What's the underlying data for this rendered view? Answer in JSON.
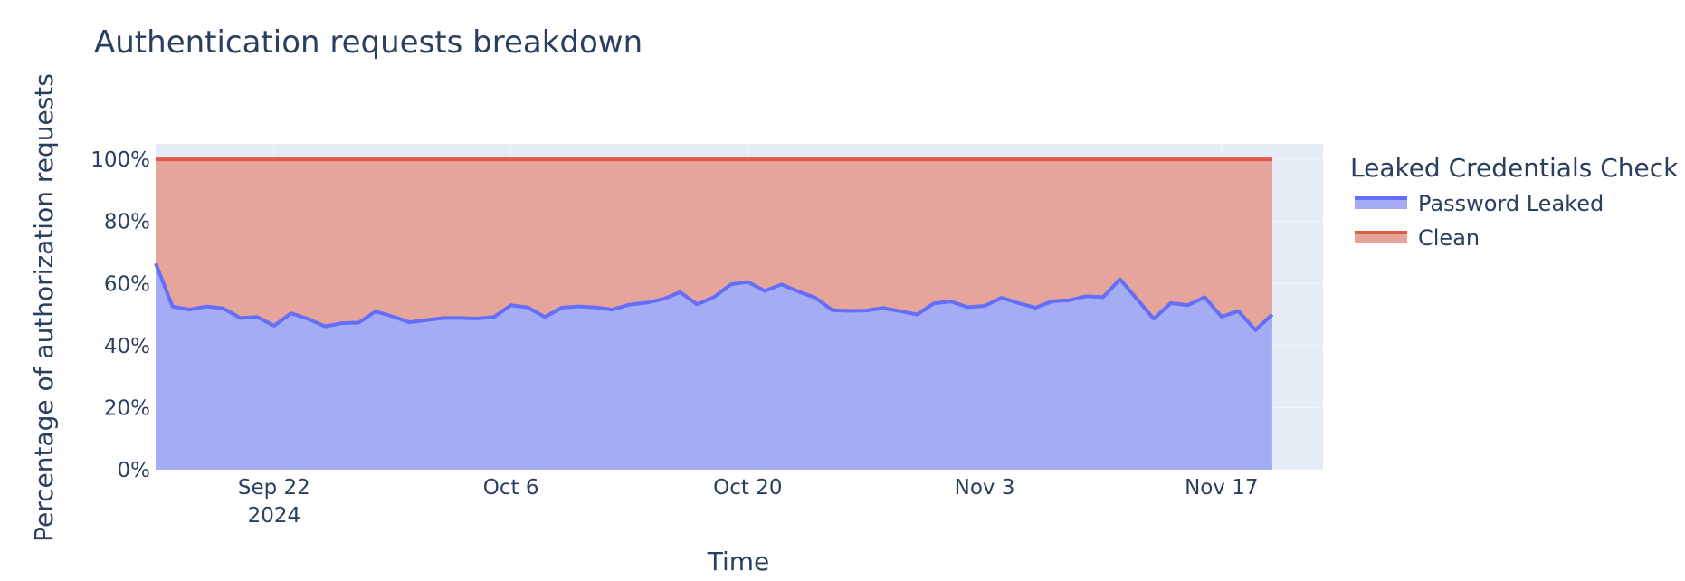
{
  "chart_data": {
    "type": "area",
    "title": "Authentication requests breakdown",
    "xlabel": "Time",
    "ylabel": "Percentage of authorization requests",
    "x_start": "2024-09-15",
    "x_end": "2024-11-23",
    "xlim": [
      "2024-09-15",
      "2024-11-23"
    ],
    "ylim": [
      0,
      105
    ],
    "stacking": "percent",
    "grid": true,
    "legend_position": "right",
    "x_ticks": [
      {
        "date": "2024-09-22",
        "label": "Sep 22",
        "sublabel": "2024"
      },
      {
        "date": "2024-10-06",
        "label": "Oct 6"
      },
      {
        "date": "2024-10-20",
        "label": "Oct 20"
      },
      {
        "date": "2024-11-03",
        "label": "Nov 3"
      },
      {
        "date": "2024-11-17",
        "label": "Nov 17"
      }
    ],
    "y_ticks": [
      {
        "value": 0,
        "label": "0%"
      },
      {
        "value": 20,
        "label": "20%"
      },
      {
        "value": 40,
        "label": "40%"
      },
      {
        "value": 60,
        "label": "60%"
      },
      {
        "value": 80,
        "label": "80%"
      },
      {
        "value": 100,
        "label": "100%"
      }
    ],
    "legend_title": "Leaked Credentials Check",
    "series": [
      {
        "name": "Password Leaked",
        "color": "#636efa",
        "fill": "#a5acf3",
        "values": [
          66.5,
          52.6,
          51.6,
          52.6,
          52.0,
          48.9,
          49.2,
          46.4,
          50.4,
          48.6,
          46.2,
          47.2,
          47.4,
          51.0,
          49.4,
          47.5,
          48.2,
          48.9,
          48.9,
          48.7,
          49.2,
          53.0,
          52.3,
          49.2,
          52.2,
          52.6,
          52.3,
          51.6,
          53.2,
          53.8,
          55.0,
          57.2,
          53.3,
          55.6,
          59.7,
          60.5,
          57.6,
          59.7,
          57.4,
          55.4,
          51.4,
          51.2,
          51.3,
          52.1,
          51.1,
          50.0,
          53.6,
          54.2,
          52.4,
          52.8,
          55.4,
          53.7,
          52.2,
          54.3,
          54.6,
          55.9,
          55.6,
          61.4,
          55.0,
          48.6,
          53.7,
          53.0,
          55.6,
          49.3,
          51.1,
          45.0,
          50.0
        ]
      },
      {
        "name": "Clean",
        "color": "#de5a44",
        "fill": "#e5a59b",
        "values": [
          33.5,
          47.4,
          48.4,
          47.4,
          48.0,
          51.1,
          50.8,
          53.6,
          49.6,
          51.4,
          53.8,
          52.8,
          52.6,
          49.0,
          50.6,
          52.5,
          51.8,
          51.1,
          51.1,
          51.3,
          50.8,
          47.0,
          47.7,
          50.8,
          47.8,
          47.4,
          47.7,
          48.4,
          46.8,
          46.2,
          45.0,
          42.8,
          46.7,
          44.4,
          40.3,
          39.5,
          42.4,
          40.3,
          42.6,
          44.6,
          48.6,
          48.8,
          48.7,
          47.9,
          48.9,
          50.0,
          46.4,
          45.8,
          47.6,
          47.2,
          44.6,
          46.3,
          47.8,
          45.7,
          45.4,
          44.1,
          44.4,
          38.6,
          45.0,
          51.4,
          46.3,
          47.0,
          44.4,
          50.7,
          48.9,
          55.0,
          50.0
        ]
      }
    ]
  }
}
